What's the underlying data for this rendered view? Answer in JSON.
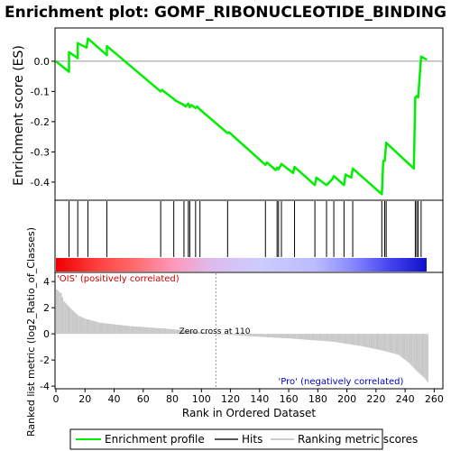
{
  "chart_data": {
    "type": "line",
    "title": "Enrichment plot: GOMF_RIBONUCLEOTIDE_BINDING",
    "xlabel": "Rank in Ordered Dataset",
    "xlim": [
      0,
      265
    ],
    "x_ticks": [
      "0",
      "20",
      "40",
      "60",
      "80",
      "100",
      "120",
      "140",
      "160",
      "180",
      "200",
      "220",
      "240",
      "260"
    ],
    "es_panel": {
      "ylabel": "Enrichment score (ES)",
      "ylim": [
        -0.46,
        0.11
      ],
      "y_ticks": [
        "0.0",
        "-0.1",
        "-0.2",
        "-0.3",
        "-0.4"
      ],
      "series": [
        {
          "name": "Enrichment profile",
          "color": "#00ee00",
          "points": [
            [
              0,
              0.0
            ],
            [
              9,
              -0.035
            ],
            [
              9,
              0.03
            ],
            [
              15,
              0.01
            ],
            [
              15,
              0.06
            ],
            [
              21,
              0.045
            ],
            [
              22,
              0.075
            ],
            [
              35,
              0.02
            ],
            [
              35,
              0.05
            ],
            [
              72,
              -0.1
            ],
            [
              73,
              -0.095
            ],
            [
              81,
              -0.125
            ],
            [
              82,
              -0.13
            ],
            [
              88,
              -0.145
            ],
            [
              89,
              -0.15
            ],
            [
              91,
              -0.14
            ],
            [
              92,
              -0.152
            ],
            [
              93,
              -0.145
            ],
            [
              96,
              -0.155
            ],
            [
              97,
              -0.15
            ],
            [
              99,
              -0.16
            ],
            [
              118,
              -0.238
            ],
            [
              119,
              -0.235
            ],
            [
              144,
              -0.343
            ],
            [
              145,
              -0.335
            ],
            [
              151,
              -0.36
            ],
            [
              152,
              -0.352
            ],
            [
              153,
              -0.358
            ],
            [
              155,
              -0.34
            ],
            [
              163,
              -0.37
            ],
            [
              164,
              -0.35
            ],
            [
              178,
              -0.41
            ],
            [
              179,
              -0.385
            ],
            [
              186,
              -0.41
            ],
            [
              187,
              -0.405
            ],
            [
              190,
              -0.39
            ],
            [
              191,
              -0.38
            ],
            [
              198,
              -0.41
            ],
            [
              199,
              -0.375
            ],
            [
              203,
              -0.385
            ],
            [
              204,
              -0.355
            ],
            [
              224,
              -0.44
            ],
            [
              225,
              -0.33
            ],
            [
              226,
              -0.33
            ],
            [
              227,
              -0.27
            ],
            [
              246,
              -0.355
            ],
            [
              247,
              -0.12
            ],
            [
              248,
              -0.115
            ],
            [
              249,
              -0.12
            ],
            [
              251,
              0.015
            ],
            [
              255,
              0.005
            ]
          ]
        }
      ]
    },
    "hits": [
      9,
      15,
      22,
      35,
      72,
      81,
      88,
      91,
      92,
      96,
      99,
      118,
      144,
      152,
      153,
      155,
      164,
      178,
      186,
      191,
      198,
      204,
      224,
      226,
      227,
      247,
      248,
      249,
      251
    ],
    "color_bar": {
      "stops": [
        "#ee0000",
        "#ff6666",
        "#ff99cc",
        "#ddbbee",
        "#ccccff",
        "#8888ff",
        "#2222ee"
      ]
    },
    "metric_panel": {
      "ylabel": "Ranked list metric (log2_Ratio_of_Classes)",
      "ylim": [
        -4.2,
        4.7
      ],
      "y_ticks": [
        "4",
        "2",
        "0",
        "-2",
        "-4"
      ],
      "positive_label": "'OIS' (positively correlated)",
      "negative_label": "'Pro' (negatively correlated)",
      "zero_cross_label": "Zero cross at 110",
      "zero_cross": 110,
      "anchors": [
        [
          0,
          3.4
        ],
        [
          3,
          3.1
        ],
        [
          5,
          2.5
        ],
        [
          10,
          1.9
        ],
        [
          15,
          1.4
        ],
        [
          20,
          1.15
        ],
        [
          30,
          0.85
        ],
        [
          50,
          0.6
        ],
        [
          75,
          0.4
        ],
        [
          100,
          0.15
        ],
        [
          110,
          0.0
        ],
        [
          135,
          -0.2
        ],
        [
          160,
          -0.35
        ],
        [
          190,
          -0.6
        ],
        [
          210,
          -0.95
        ],
        [
          225,
          -1.3
        ],
        [
          235,
          -1.6
        ],
        [
          242,
          -2.2
        ],
        [
          248,
          -2.9
        ],
        [
          253,
          -3.4
        ],
        [
          255,
          -3.7
        ]
      ]
    },
    "legend": [
      "Enrichment profile",
      "Hits",
      "Ranking metric scores"
    ]
  }
}
